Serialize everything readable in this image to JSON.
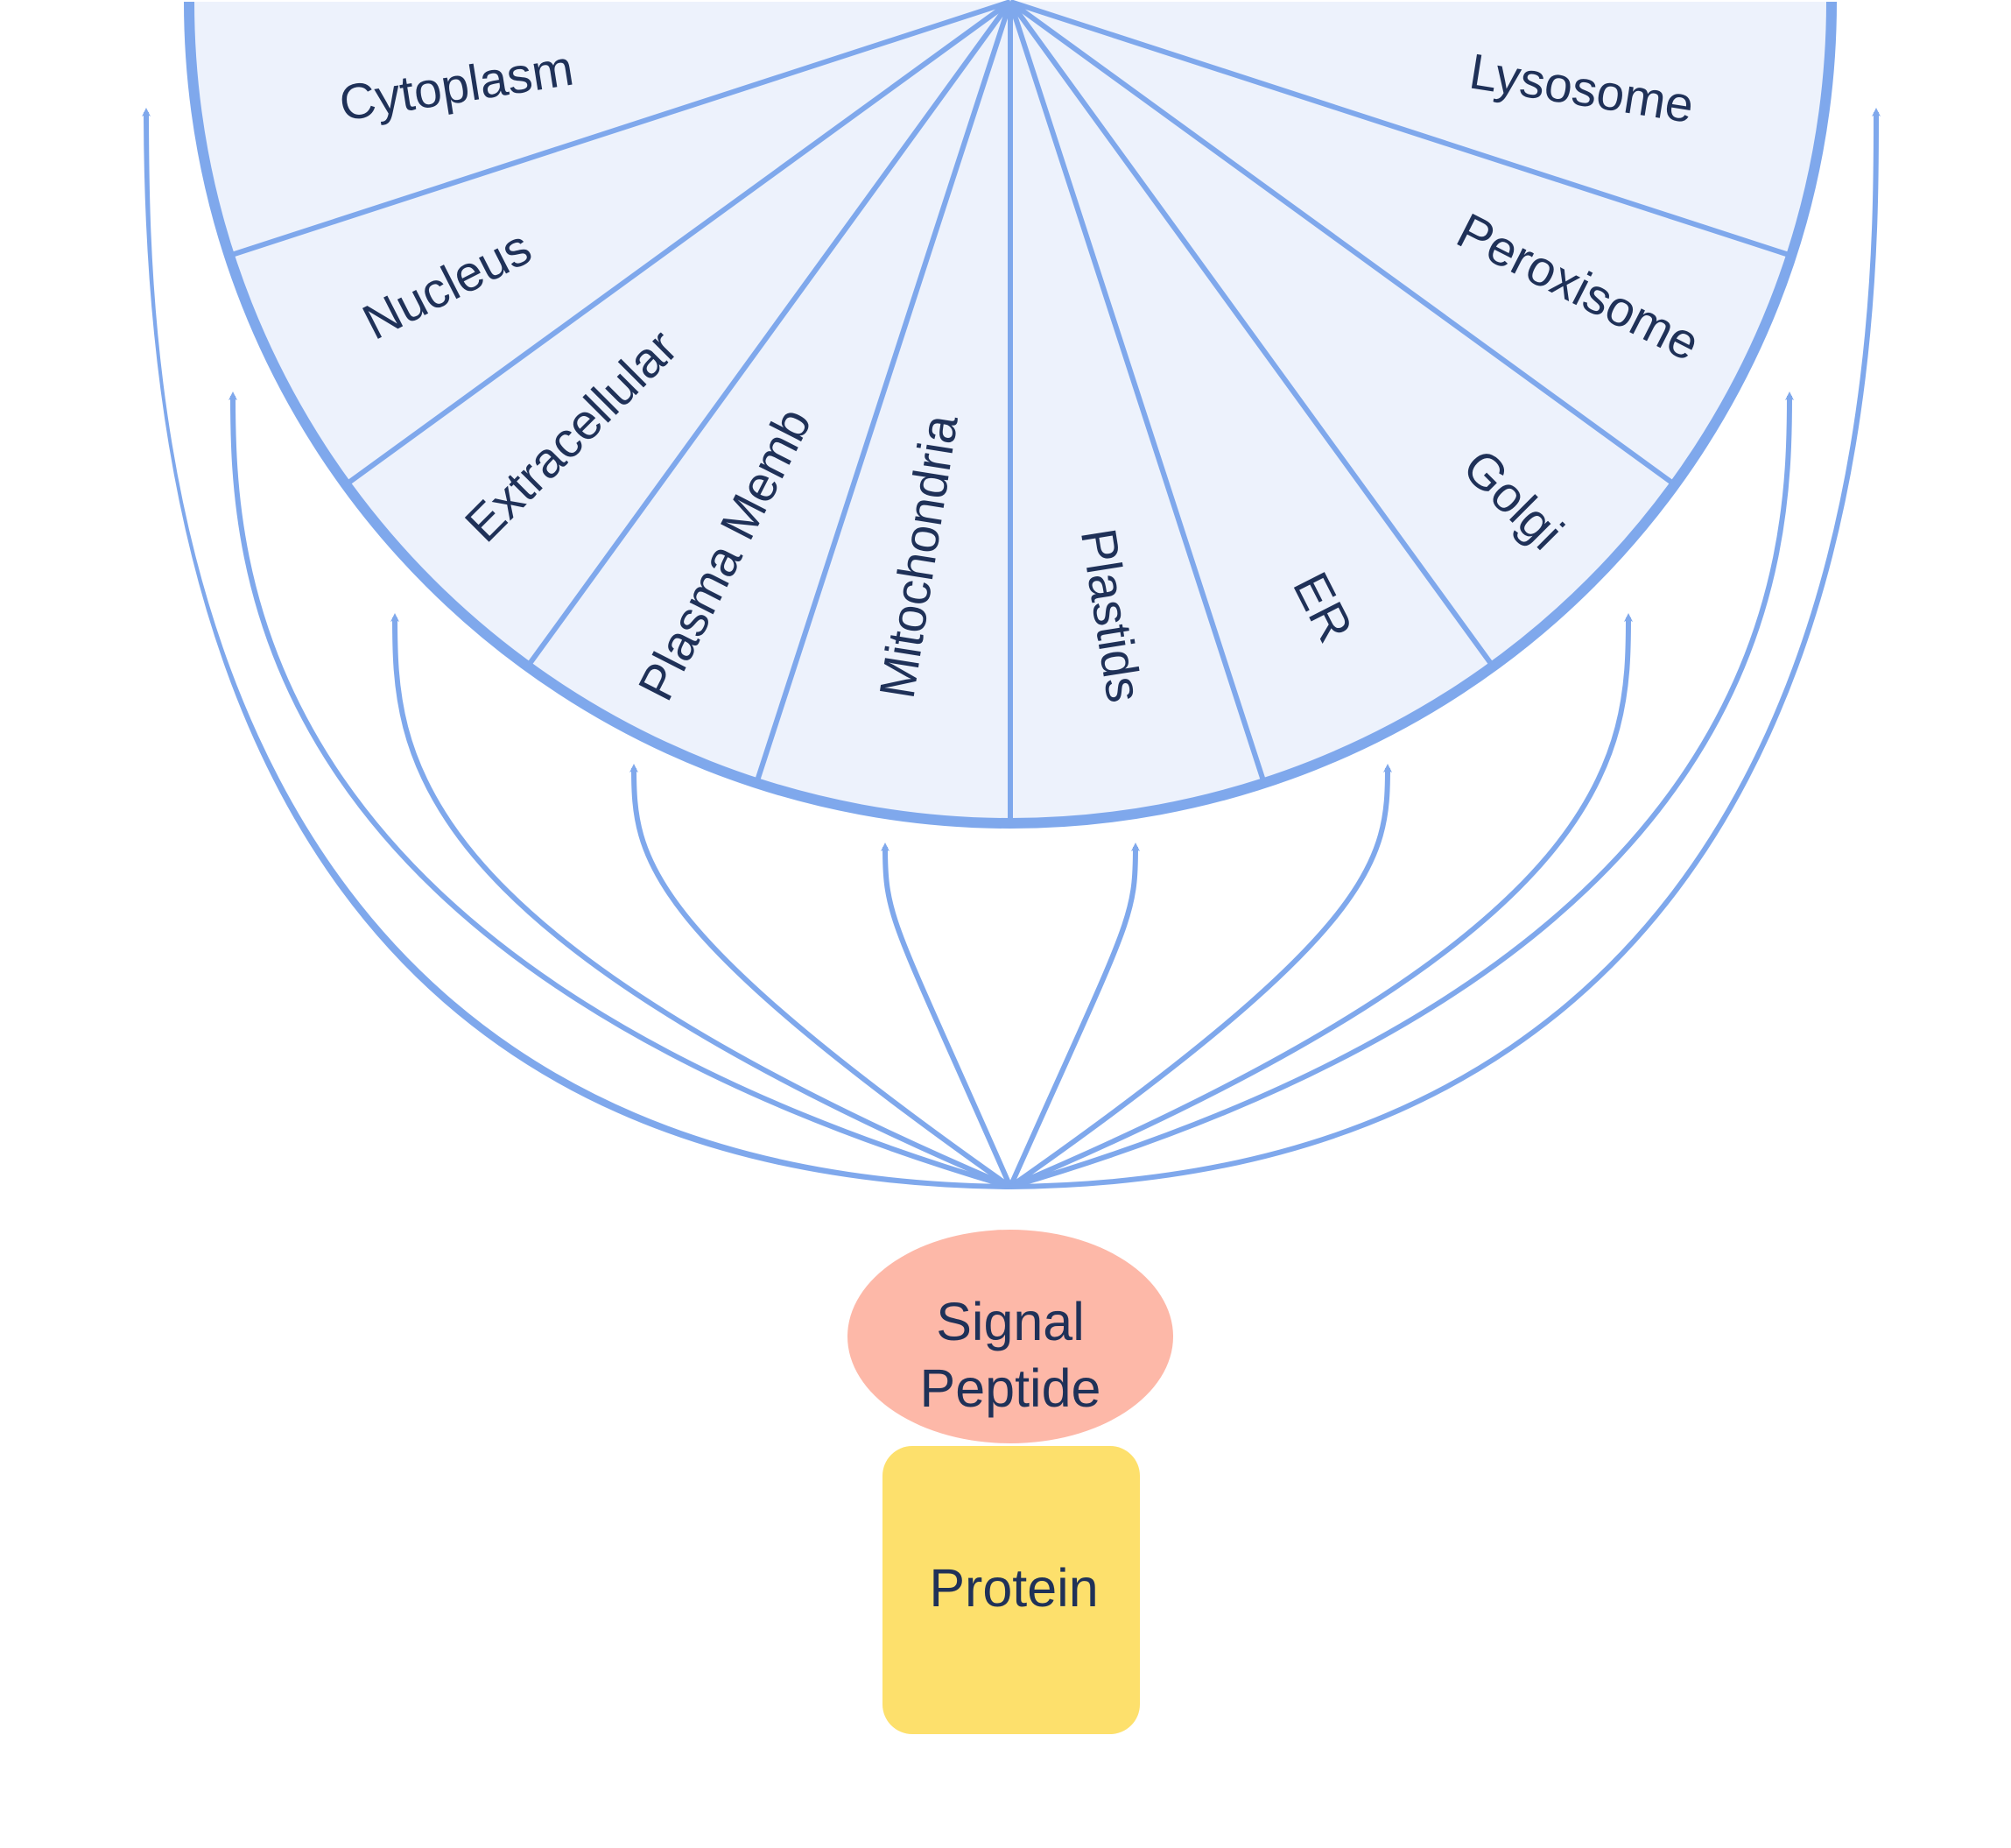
{
  "diagram": {
    "compartments": [
      "Cytoplasm",
      "Nucleus",
      "Extracellular",
      "Plasma Memb",
      "Mitochondria",
      "Plastids",
      "ER",
      "Golgi",
      "Peroxisome",
      "Lysosome"
    ],
    "signal_peptide": {
      "line1": "Signal",
      "line2": "Peptide"
    },
    "protein": "Protein",
    "colors": {
      "wheel_fill": "#edf2fc",
      "wheel_stroke": "#7fa8ec",
      "arrow": "#7fa8ec",
      "signal_peptide": "#fdb8a8",
      "protein": "#fde06c",
      "text": "#1f3158"
    }
  }
}
